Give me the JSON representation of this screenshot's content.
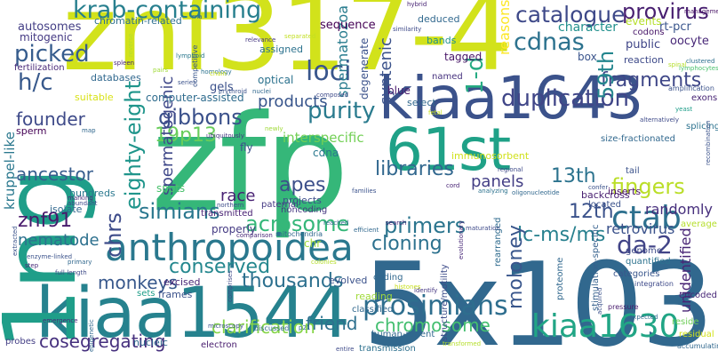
{
  "words": [
    {
      "text": "znf317-4",
      "color": "#d2e21b"
    },
    {
      "text": "zfp",
      "color": "#35b779"
    },
    {
      "text": "5x103",
      "color": "#31688e"
    },
    {
      "text": "kiaa1544",
      "color": "#26828e"
    },
    {
      "text": "1ng",
      "color": "#1f9e89"
    },
    {
      "text": "kiaa1643",
      "color": "#3b528b"
    },
    {
      "text": "61st",
      "color": "#1fa187"
    },
    {
      "text": "anthropoidea",
      "color": "#2a788e"
    },
    {
      "text": "krab-containing",
      "color": "#277f8e"
    },
    {
      "text": "catalogue",
      "color": "#3e4989"
    },
    {
      "text": "provirus",
      "color": "#481f70"
    },
    {
      "text": "cdnas",
      "color": "#2c728e"
    },
    {
      "text": "ctab",
      "color": "#2d708e"
    },
    {
      "text": "kiaa1630",
      "color": "#21a585"
    },
    {
      "text": "prosimians",
      "color": "#2e6e8e"
    },
    {
      "text": "picked",
      "color": "#365c8d"
    },
    {
      "text": "loci",
      "color": "#39568c"
    },
    {
      "text": "h/c",
      "color": "#38598c"
    },
    {
      "text": "1-d",
      "color": "#25ab82"
    },
    {
      "text": "duplication",
      "color": "#404688"
    },
    {
      "text": "fragments",
      "color": "#3f4788"
    },
    {
      "text": "59th",
      "color": "#24868e"
    },
    {
      "text": "eighty-eight",
      "color": "#1f958b"
    },
    {
      "text": "gibbons",
      "color": "#3b518b"
    },
    {
      "text": "purity",
      "color": "#2a7b8e"
    },
    {
      "text": "19p13",
      "color": "#69cd5b"
    },
    {
      "text": "fingers",
      "color": "#bade28"
    },
    {
      "text": "apes",
      "color": "#3c4f8a"
    },
    {
      "text": "da-2",
      "color": "#414487"
    },
    {
      "text": "13th",
      "color": "#2c738e"
    },
    {
      "text": "simians",
      "color": "#2a778e"
    },
    {
      "text": "acrosome",
      "color": "#35b779"
    },
    {
      "text": "conserved",
      "color": "#24878e"
    },
    {
      "text": "chrs",
      "color": "#3e4c8a"
    },
    {
      "text": "primers",
      "color": "#2b758e"
    },
    {
      "text": "12th",
      "color": "#3b528b"
    },
    {
      "text": "lc-ms/ms",
      "color": "#27808e"
    },
    {
      "text": "cloning",
      "color": "#2c718e"
    },
    {
      "text": "monkeys",
      "color": "#38588c"
    },
    {
      "text": "thousands",
      "color": "#2d708e"
    },
    {
      "text": "moloney",
      "color": "#39568c"
    },
    {
      "text": "znf91",
      "color": "#481a6c"
    },
    {
      "text": "nematode",
      "color": "#2d708e"
    },
    {
      "text": "ancestor",
      "color": "#365d8d"
    },
    {
      "text": "founder",
      "color": "#3e4a89"
    },
    {
      "text": "libraries",
      "color": "#31678e"
    },
    {
      "text": "cosegregating",
      "color": "#46307e"
    },
    {
      "text": "clarification",
      "color": "#86d549"
    },
    {
      "text": "friend",
      "color": "#2d708e"
    },
    {
      "text": "chromosome",
      "color": "#44bf70"
    },
    {
      "text": "randomly",
      "color": "#472f7d"
    },
    {
      "text": "retrovirus",
      "color": "#3b528b"
    },
    {
      "text": "unidentified",
      "color": "#482475"
    },
    {
      "text": "spermatogenic",
      "color": "#3f4889"
    },
    {
      "text": "spermatozoa",
      "color": "#287c8e"
    },
    {
      "text": "syntenic",
      "color": "#3b528b"
    },
    {
      "text": "products",
      "color": "#39568c"
    },
    {
      "text": "race",
      "color": "#482173"
    },
    {
      "text": "panels",
      "color": "#433e85"
    },
    {
      "text": "kruppel-like",
      "color": "#2a788e"
    },
    {
      "text": "properly",
      "color": "#443a83"
    },
    {
      "text": "interspecific",
      "color": "#73d056"
    },
    {
      "text": "reasons",
      "color": "#fde725"
    },
    {
      "text": "sequence",
      "color": "#440154"
    },
    {
      "text": "character",
      "color": "#21908d"
    },
    {
      "text": "public",
      "color": "#404688"
    },
    {
      "text": "rt-pcr",
      "color": "#39558c"
    },
    {
      "text": "oocyte",
      "color": "#482878"
    },
    {
      "text": "events",
      "color": "#b5de2b"
    },
    {
      "text": "codons",
      "color": "#481769"
    },
    {
      "text": "box",
      "color": "#3a548c"
    },
    {
      "text": "reaction",
      "color": "#3e4a89"
    },
    {
      "text": "autosomes",
      "color": "#433e85"
    },
    {
      "text": "mitogenic",
      "color": "#443983"
    },
    {
      "text": "chromatin-related",
      "color": "#2e6f8e"
    },
    {
      "text": "fertilization",
      "color": "#482878"
    },
    {
      "text": "databases",
      "color": "#31688e"
    },
    {
      "text": "suitable",
      "color": "#d8e219"
    },
    {
      "text": "sperm",
      "color": "#440154"
    },
    {
      "text": "computer-assisted",
      "color": "#2f6c8e"
    },
    {
      "text": "gels",
      "color": "#3b518b"
    },
    {
      "text": "optical",
      "color": "#2c728e"
    },
    {
      "text": "assigned",
      "color": "#2c728e"
    },
    {
      "text": "degenerate",
      "color": "#3b528b"
    },
    {
      "text": "tagged",
      "color": "#481668"
    },
    {
      "text": "bands",
      "color": "#21918c"
    },
    {
      "text": "deduced",
      "color": "#31688e"
    },
    {
      "text": "named",
      "color": "#46327e"
    },
    {
      "text": "blue",
      "color": "#481b6d"
    },
    {
      "text": "select",
      "color": "#31688e"
    },
    {
      "text": "fly",
      "color": "#3b528b"
    },
    {
      "text": "cdna",
      "color": "#2a788e"
    },
    {
      "text": "spots",
      "color": "#4ac16d"
    },
    {
      "text": "transmitted",
      "color": "#482173"
    },
    {
      "text": "paternal",
      "color": "#443983"
    },
    {
      "text": "projects",
      "color": "#3d4e8a"
    },
    {
      "text": "noncoding",
      "color": "#453781"
    },
    {
      "text": "hundreds",
      "color": "#2a788e"
    },
    {
      "text": "isolate",
      "color": "#31688e"
    },
    {
      "text": "frames",
      "color": "#3b528b"
    },
    {
      "text": "excised",
      "color": "#482575"
    },
    {
      "text": "sets",
      "color": "#1f9e89"
    },
    {
      "text": "evolved",
      "color": "#3b528b"
    },
    {
      "text": "reading",
      "color": "#a0da39"
    },
    {
      "text": "coding",
      "color": "#31688e"
    },
    {
      "text": "classified",
      "color": "#31688e"
    },
    {
      "text": "human-rodent",
      "color": "#31688e"
    },
    {
      "text": "nucleic",
      "color": "#31688e"
    },
    {
      "text": "electron",
      "color": "#481c6e"
    },
    {
      "text": "probes",
      "color": "#433e85"
    },
    {
      "text": "transmission",
      "color": "#2d708e"
    },
    {
      "text": "structure/motility",
      "color": "#3e4c8a"
    },
    {
      "text": "rearranged",
      "color": "#2f6b8e"
    },
    {
      "text": "immunosorbent",
      "color": "#d0e11c"
    },
    {
      "text": "size-fractionated",
      "color": "#31688e"
    },
    {
      "text": "stimulation-specific",
      "color": "#35608d"
    },
    {
      "text": "backcross",
      "color": "#481f70"
    },
    {
      "text": "located",
      "color": "#3b528b"
    },
    {
      "text": "inserts",
      "color": "#471063"
    },
    {
      "text": "genome",
      "color": "#3e4a89"
    },
    {
      "text": "quantified",
      "color": "#2c728e"
    },
    {
      "text": "categories",
      "color": "#39568c"
    },
    {
      "text": "encoded",
      "color": "#482878"
    },
    {
      "text": "reside",
      "color": "#6ece58"
    },
    {
      "text": "residual",
      "color": "#d2e21b"
    },
    {
      "text": "proteome",
      "color": "#31688e"
    },
    {
      "text": "amplification",
      "color": "#3b528b"
    },
    {
      "text": "exons",
      "color": "#482575"
    },
    {
      "text": "splicing",
      "color": "#2c728e"
    },
    {
      "text": "average",
      "color": "#b5de2b"
    },
    {
      "text": "integration",
      "color": "#3e4a89"
    },
    {
      "text": "pressure",
      "color": "#481b6d"
    },
    {
      "text": "accumulating",
      "color": "#31688e"
    },
    {
      "text": "tail",
      "color": "#3b528b"
    },
    {
      "text": "management",
      "color": "#471365"
    },
    {
      "text": "clustered",
      "color": "#2d708e"
    },
    {
      "text": "lymphocytes",
      "color": "#4ac16d"
    },
    {
      "text": "yeast",
      "color": "#1f9e89"
    },
    {
      "text": "recombination",
      "color": "#3b528b"
    },
    {
      "text": "hybrid",
      "color": "#482475"
    },
    {
      "text": "similarity",
      "color": "#3e4a89"
    },
    {
      "text": "relevance",
      "color": "#453781"
    },
    {
      "text": "separated",
      "color": "#c2df23"
    },
    {
      "text": "homology",
      "color": "#2c728e"
    },
    {
      "text": "spleen",
      "color": "#482878"
    },
    {
      "text": "pairs",
      "color": "#a0da39"
    },
    {
      "text": "competitive",
      "color": "#39568c"
    },
    {
      "text": "lymphoid",
      "color": "#2a788e"
    },
    {
      "text": "series",
      "color": "#3b528b"
    },
    {
      "text": "chain",
      "color": "#c8e020"
    },
    {
      "text": "erythroid",
      "color": "#3b528b"
    },
    {
      "text": "nuclei",
      "color": "#31688e"
    },
    {
      "text": "composed",
      "color": "#3e4a89"
    },
    {
      "text": "reached",
      "color": "#31688e"
    },
    {
      "text": "ubiquitously",
      "color": "#453781"
    },
    {
      "text": "newly",
      "color": "#a0da39"
    },
    {
      "text": "northern",
      "color": "#3e4c8a"
    },
    {
      "text": "comparison",
      "color": "#482878"
    },
    {
      "text": "mitochondria",
      "color": "#31688e"
    },
    {
      "text": "microscopy",
      "color": "#3b528b"
    },
    {
      "text": "comprises",
      "color": "#3e4a89"
    },
    {
      "text": "discussed",
      "color": "#31688e"
    },
    {
      "text": "p21",
      "color": "#31688e"
    },
    {
      "text": "entire",
      "color": "#3e4a89"
    },
    {
      "text": "colonies",
      "color": "#b5de2b"
    },
    {
      "text": "histones",
      "color": "#c8e020"
    },
    {
      "text": "identify",
      "color": "#453781"
    },
    {
      "text": "transformed",
      "color": "#b5de2b"
    },
    {
      "text": "analyzing",
      "color": "#2c728e"
    },
    {
      "text": "families",
      "color": "#3b528b"
    },
    {
      "text": "search",
      "color": "#482878"
    },
    {
      "text": "efficient",
      "color": "#31688e"
    },
    {
      "text": "maturation",
      "color": "#3e4a89"
    },
    {
      "text": "acquired",
      "color": "#3b528b"
    },
    {
      "text": "expected",
      "color": "#31688e"
    },
    {
      "text": "cord",
      "color": "#482475"
    },
    {
      "text": "fetal",
      "color": "#c8e020"
    },
    {
      "text": "regional",
      "color": "#3e4a89"
    },
    {
      "text": "confer",
      "color": "#3b528b"
    },
    {
      "text": "evolutionary",
      "color": "#482878"
    },
    {
      "text": "oligonucleotide",
      "color": "#31688e"
    },
    {
      "text": "chr",
      "color": "#a0da39"
    },
    {
      "text": "enzyme-linked",
      "color": "#3b528b"
    },
    {
      "text": "step",
      "color": "#482878"
    },
    {
      "text": "primary",
      "color": "#31688e"
    },
    {
      "text": "full-length",
      "color": "#3e4a89"
    },
    {
      "text": "emergence",
      "color": "#482878"
    },
    {
      "text": "epigenetic",
      "color": "#31688e"
    },
    {
      "text": "abundant",
      "color": "#3e4a89"
    },
    {
      "text": "marking",
      "color": "#482878"
    },
    {
      "text": "map",
      "color": "#31688e"
    },
    {
      "text": "extracted",
      "color": "#3b528b"
    },
    {
      "text": "rna",
      "color": "#31688e"
    },
    {
      "text": "alternatively",
      "color": "#3e4a89"
    },
    {
      "text": "spinal",
      "color": "#b5de2b"
    },
    {
      "text": "reverse",
      "color": "#b5de2b"
    }
  ]
}
